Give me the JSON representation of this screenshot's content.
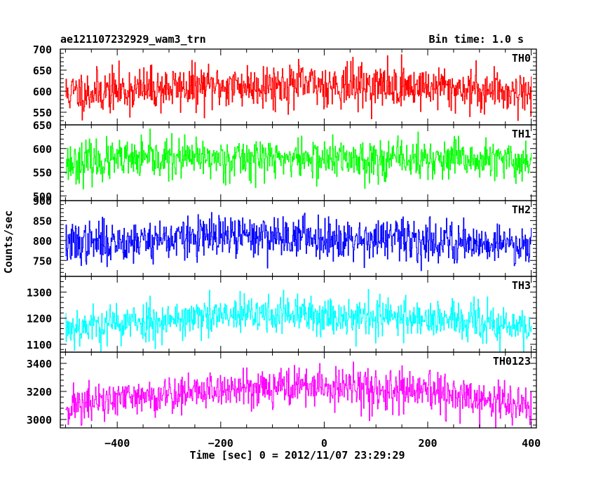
{
  "header": {
    "left_title": "ae121107232929_wam3_trn",
    "right_title": "Bin time: 1.0 s"
  },
  "chart_data": {
    "type": "line",
    "title": "ae121107232929_wam3_trn",
    "subtitle": "Bin time: 1.0 s",
    "xlabel": "Time [sec] 0 = 2012/11/07 23:29:29",
    "ylabel": "Counts/sec",
    "xlim": [
      -510,
      410
    ],
    "x_start": -500,
    "x_end": 400,
    "x_step": 1,
    "x_ticks": [
      -400,
      -200,
      0,
      200,
      400
    ],
    "x_tick_labels": [
      "−400",
      "−200",
      "0",
      "200",
      "400"
    ],
    "grid": false,
    "panels": [
      {
        "name": "TH0",
        "color": "#ff0000",
        "ylim": [
          520,
          700
        ],
        "y_ticks": [
          550,
          600,
          650,
          700
        ],
        "y_tick_labels": [
          "550",
          "600",
          "650",
          "700"
        ],
        "trend": [
          [
            -500,
            595
          ],
          [
            -300,
            607
          ],
          [
            -100,
            615
          ],
          [
            0,
            615
          ],
          [
            200,
            610
          ],
          [
            400,
            597
          ]
        ],
        "noise_sd": 26,
        "seed": 11
      },
      {
        "name": "TH1",
        "color": "#00ff00",
        "ylim": [
          490,
          650
        ],
        "y_ticks": [
          500,
          550,
          600,
          650
        ],
        "y_tick_labels": [
          "500",
          "550",
          "600",
          "650"
        ],
        "trend": [
          [
            -500,
            570
          ],
          [
            -300,
            578
          ],
          [
            -100,
            580
          ],
          [
            0,
            578
          ],
          [
            200,
            577
          ],
          [
            400,
            572
          ]
        ],
        "noise_sd": 21,
        "seed": 23
      },
      {
        "name": "TH2",
        "color": "#0000ff",
        "ylim": [
          710,
          900
        ],
        "y_ticks": [
          750,
          800,
          850,
          900
        ],
        "y_tick_labels": [
          "750",
          "800",
          "850",
          "900"
        ],
        "trend": [
          [
            -500,
            790
          ],
          [
            -300,
            805
          ],
          [
            -100,
            812
          ],
          [
            0,
            808
          ],
          [
            200,
            800
          ],
          [
            400,
            790
          ]
        ],
        "noise_sd": 26,
        "seed": 37
      },
      {
        "name": "TH3",
        "color": "#00ffff",
        "ylim": [
          1070,
          1360
        ],
        "y_ticks": [
          1100,
          1200,
          1300
        ],
        "y_tick_labels": [
          "1100",
          "1200",
          "1300"
        ],
        "trend": [
          [
            -500,
            1165
          ],
          [
            -300,
            1195
          ],
          [
            -100,
            1215
          ],
          [
            0,
            1210
          ],
          [
            200,
            1200
          ],
          [
            400,
            1160
          ]
        ],
        "noise_sd": 38,
        "seed": 53
      },
      {
        "name": "TH0123",
        "color": "#ff00ff",
        "ylim": [
          2940,
          3480
        ],
        "y_ticks": [
          3000,
          3200,
          3400
        ],
        "y_tick_labels": [
          "3000",
          "3200",
          "3400"
        ],
        "trend": [
          [
            -500,
            3095
          ],
          [
            -300,
            3180
          ],
          [
            -100,
            3240
          ],
          [
            0,
            3230
          ],
          [
            200,
            3190
          ],
          [
            400,
            3090
          ]
        ],
        "noise_sd": 70,
        "seed": 71
      }
    ]
  }
}
